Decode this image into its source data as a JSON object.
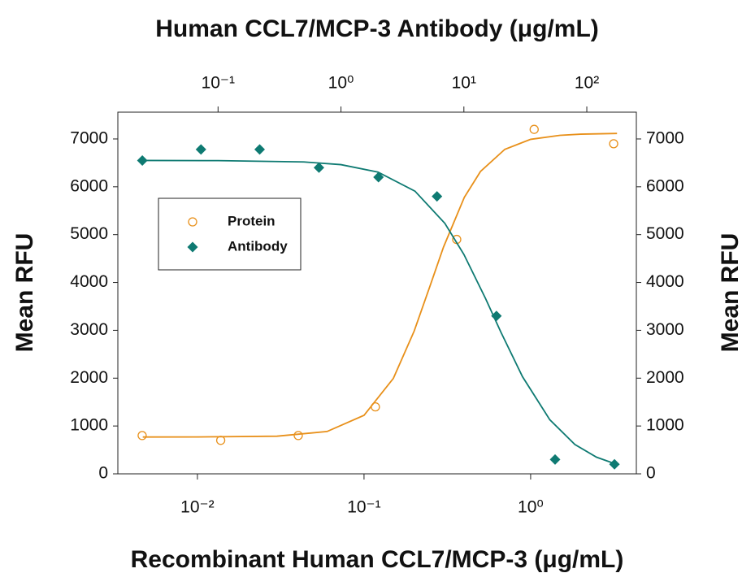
{
  "chart_data": {
    "type": "scatter",
    "x2_label": "Human CCL7/MCP-3 Antibody (μg/mL)",
    "x_label": "Recombinant Human CCL7/MCP-3 (μg/mL)",
    "y_label": "Mean RFU",
    "y2_label": "Mean RFU",
    "xscale": "log",
    "x2scale": "log",
    "xlim": [
      0.00333,
      4.31
    ],
    "x2lim": [
      0.0153,
      253
    ],
    "ylim": [
      0,
      7560
    ],
    "y2lim": [
      0,
      7560
    ],
    "xticks": [
      {
        "value": 0.01,
        "label": "10⁻²"
      },
      {
        "value": 0.1,
        "label": "10⁻¹"
      },
      {
        "value": 1,
        "label": "10⁰"
      }
    ],
    "x2ticks": [
      {
        "value": 0.1,
        "label": "10⁻¹"
      },
      {
        "value": 1,
        "label": "10⁰"
      },
      {
        "value": 10,
        "label": "10¹"
      },
      {
        "value": 100,
        "label": "10²"
      }
    ],
    "yticks": [
      0,
      1000,
      2000,
      3000,
      4000,
      5000,
      6000,
      7000
    ],
    "y2ticks": [
      0,
      1000,
      2000,
      3000,
      4000,
      5000,
      6000,
      7000
    ],
    "legend": "upper left",
    "series": [
      {
        "name": "Protein",
        "color": "#e8901a",
        "marker": "open-circle",
        "xaxis": "x",
        "x": [
          0.00466,
          0.0138,
          0.0403,
          0.117,
          0.36,
          1.05,
          3.15
        ],
        "values": [
          800,
          700,
          800,
          1400,
          4900,
          7200,
          6900
        ],
        "fit": {
          "x": [
            0.0047,
            0.01,
            0.03,
            0.06,
            0.1,
            0.15,
            0.2,
            0.25,
            0.3,
            0.4,
            0.5,
            0.7,
            1,
            1.5,
            2,
            3.3
          ],
          "values": [
            770,
            771,
            787,
            885,
            1223,
            1996,
            2984,
            3945,
            4740,
            5780,
            6320,
            6783,
            6992,
            7076,
            7100,
            7115
          ]
        }
      },
      {
        "name": "Antibody",
        "color": "#0e7a72",
        "marker": "diamond",
        "xaxis": "x2",
        "x": [
          0.0242,
          0.0726,
          0.218,
          0.662,
          2.02,
          6.04,
          18.4,
          55.2,
          168
        ],
        "values": [
          6550,
          6780,
          6780,
          6400,
          6200,
          5800,
          3300,
          300,
          200
        ],
        "fit": {
          "x": [
            0.0242,
            0.1,
            0.5,
            1,
            2,
            4,
            7,
            10,
            15,
            20,
            30,
            50,
            80,
            120,
            168
          ],
          "values": [
            6550,
            6547,
            6519,
            6463,
            6308,
            5909,
            5237,
            4587,
            3665,
            2962,
            2030,
            1131,
            613,
            348,
            215
          ]
        }
      }
    ]
  }
}
